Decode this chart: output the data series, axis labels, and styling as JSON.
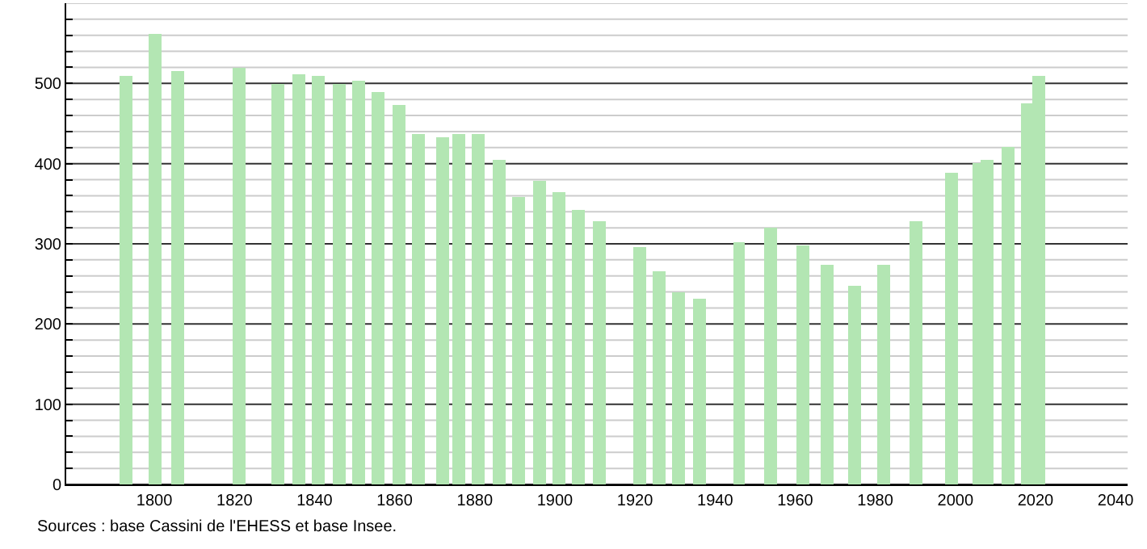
{
  "chart_data": {
    "type": "bar",
    "x": [
      1793,
      1800,
      1806,
      1821,
      1831,
      1836,
      1841,
      1846,
      1851,
      1856,
      1861,
      1866,
      1872,
      1876,
      1881,
      1886,
      1891,
      1896,
      1901,
      1906,
      1911,
      1921,
      1926,
      1931,
      1936,
      1946,
      1954,
      1962,
      1968,
      1975,
      1982,
      1990,
      1999,
      2006,
      2008,
      2013,
      2018,
      2021
    ],
    "values": [
      510,
      561,
      516,
      519,
      499,
      512,
      510,
      499,
      504,
      490,
      474,
      436,
      432,
      436,
      436,
      405,
      359,
      379,
      364,
      342,
      329,
      296,
      266,
      239,
      232,
      302,
      320,
      299,
      274,
      247,
      274,
      328,
      388,
      400,
      404,
      420,
      476,
      509
    ],
    "color": "#b3e6b3",
    "xlim": [
      1778,
      2043
    ],
    "xticks": [
      1800,
      1820,
      1840,
      1860,
      1880,
      1900,
      1920,
      1940,
      1960,
      1980,
      2000,
      2020,
      2040
    ],
    "ylim": [
      0,
      600
    ],
    "yticks": [
      0,
      {
        "value": 20,
        "label": null
      },
      {
        "value": 40,
        "label": null
      },
      {
        "value": 60,
        "label": null
      },
      {
        "value": 80,
        "label": null
      },
      100,
      {
        "value": 120,
        "label": null
      },
      {
        "value": 140,
        "label": null
      },
      {
        "value": 160,
        "label": null
      },
      {
        "value": 180,
        "label": null
      },
      200,
      {
        "value": 220,
        "label": null
      },
      {
        "value": 240,
        "label": null
      },
      {
        "value": 260,
        "label": null
      },
      {
        "value": 280,
        "label": null
      },
      300,
      {
        "value": 320,
        "label": null
      },
      {
        "value": 340,
        "label": null
      },
      {
        "value": 360,
        "label": null
      },
      {
        "value": 380,
        "label": null
      },
      400,
      {
        "value": 420,
        "label": null
      },
      {
        "value": 440,
        "label": null
      },
      {
        "value": 460,
        "label": null
      },
      {
        "value": 480,
        "label": null
      },
      500,
      {
        "value": 520,
        "label": null
      },
      {
        "value": 540,
        "label": null
      },
      {
        "value": 560,
        "label": null
      },
      {
        "value": 580,
        "label": null
      },
      {
        "value": 600,
        "label": null
      }
    ],
    "grid": "y",
    "annotations": [
      "Sources : base Cassini de l'EHESS et base Insee."
    ]
  }
}
